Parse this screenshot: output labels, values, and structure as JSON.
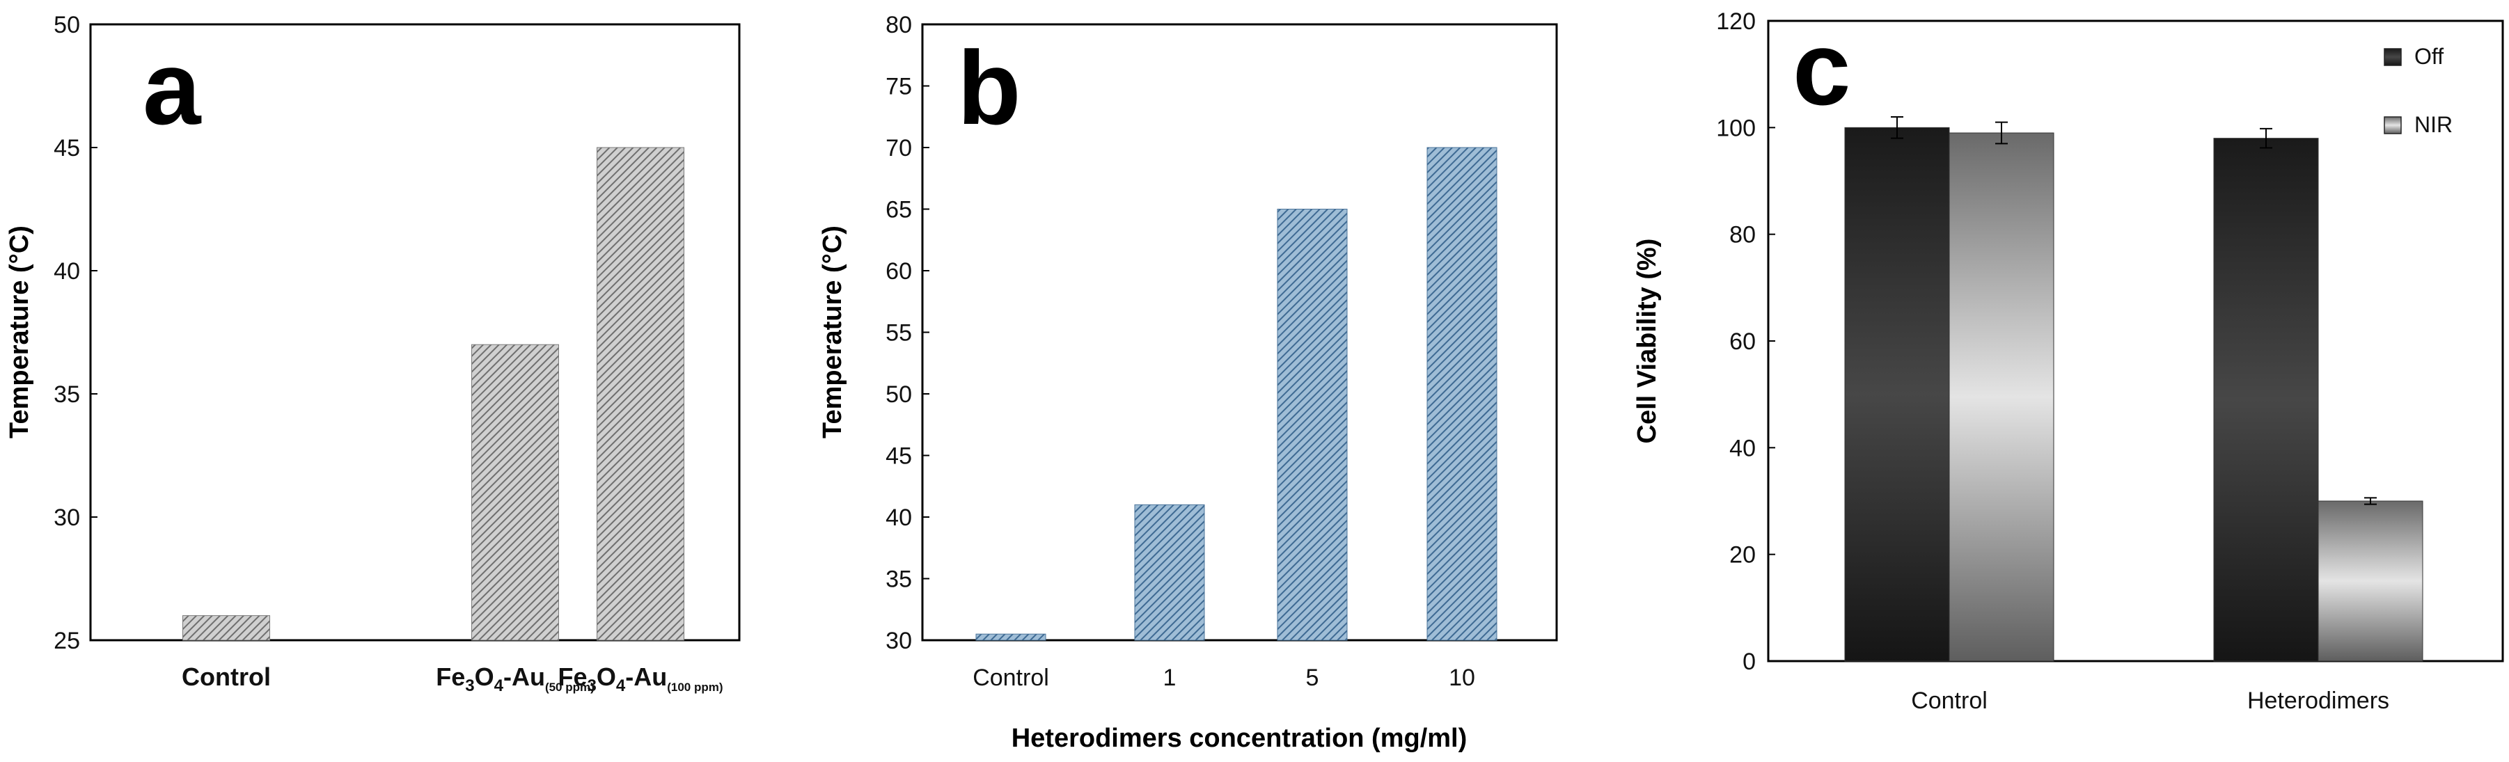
{
  "chart_data": [
    {
      "panel": "a",
      "type": "bar",
      "categories": [
        "Control",
        "Fe3O4-Au(50 ppm)",
        "Fe3O4-Au(100 ppm)"
      ],
      "category_labels": [
        {
          "parts": [
            {
              "t": "Control",
              "s": "n"
            }
          ]
        },
        {
          "parts": [
            {
              "t": "Fe",
              "s": "n"
            },
            {
              "t": "3",
              "s": "sub"
            },
            {
              "t": "O",
              "s": "n"
            },
            {
              "t": "4",
              "s": "sub"
            },
            {
              "t": "-Au",
              "s": "n"
            },
            {
              "t": "(50 ppm)",
              "s": "subsmall"
            }
          ]
        },
        {
          "parts": [
            {
              "t": "Fe",
              "s": "n"
            },
            {
              "t": "3",
              "s": "sub"
            },
            {
              "t": "O",
              "s": "n"
            },
            {
              "t": "4",
              "s": "sub"
            },
            {
              "t": "-Au",
              "s": "n"
            },
            {
              "t": "(100 ppm)",
              "s": "subsmall"
            }
          ]
        }
      ],
      "values": [
        26,
        37,
        45
      ],
      "ylim": [
        25,
        50
      ],
      "yticks": [
        "25",
        "30",
        "35",
        "40",
        "45",
        "50"
      ],
      "ylabel": "Temperature (°C)",
      "xlabel": "",
      "grid": false,
      "bar_color": "#8e8e8e",
      "pattern": "diagonal-hatch"
    },
    {
      "panel": "b",
      "type": "bar",
      "categories": [
        "Control",
        "1",
        "5",
        "10"
      ],
      "values": [
        30.5,
        41,
        65,
        70
      ],
      "ylim": [
        30,
        80
      ],
      "yticks": [
        "30",
        "35",
        "40",
        "45",
        "50",
        "55",
        "60",
        "65",
        "70",
        "75",
        "80"
      ],
      "ylabel": "Temperature (°C)",
      "xlabel": "Heterodimers concentration (mg/ml)",
      "grid": false,
      "bar_color": "#5a86ad",
      "pattern": "diagonal-hatch"
    },
    {
      "panel": "c",
      "type": "bar",
      "categories": [
        "Control",
        "Heterodimers"
      ],
      "series": [
        {
          "name": "Off",
          "values": [
            100,
            98
          ],
          "errors": [
            2,
            1.8
          ],
          "color": "#2c2c2c"
        },
        {
          "name": "NIR",
          "values": [
            99,
            30
          ],
          "errors": [
            2,
            0.6
          ],
          "color": "#bdbdbd"
        }
      ],
      "ylim": [
        0,
        120
      ],
      "yticks": [
        "0",
        "20",
        "40",
        "60",
        "80",
        "100",
        "120"
      ],
      "ylabel": "Cell Viability (%)",
      "xlabel": "",
      "legend": "top-right",
      "grid": false
    }
  ]
}
